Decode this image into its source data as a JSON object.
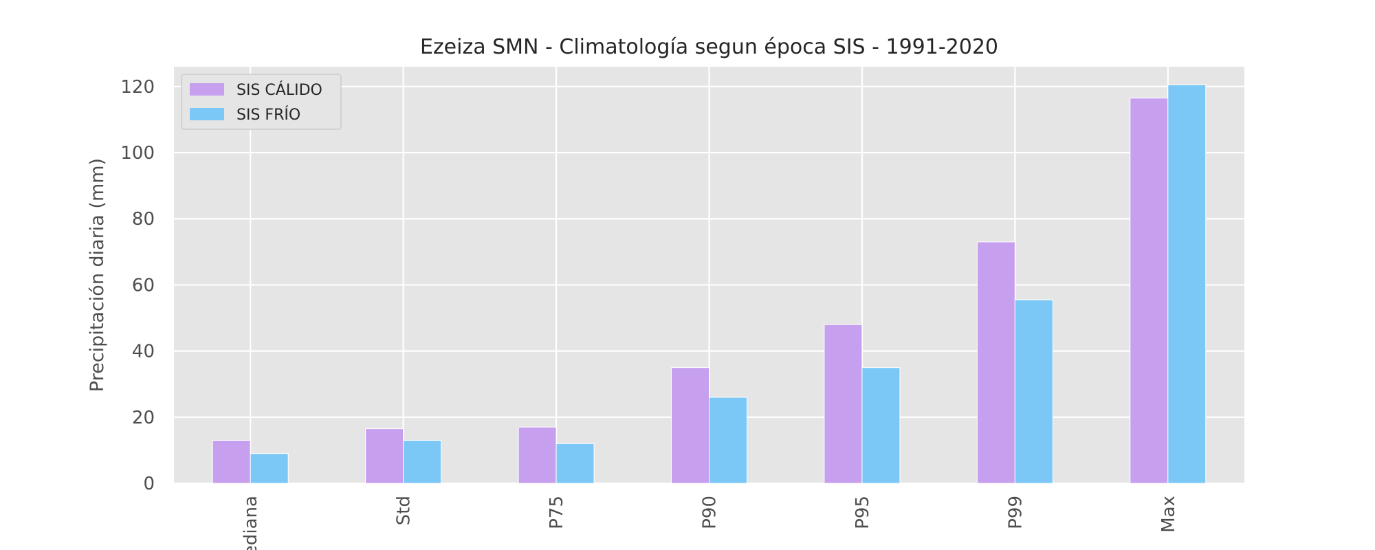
{
  "chart_data": {
    "type": "bar",
    "title": "Ezeiza SMN - Climatología segun época SIS - 1991-2020",
    "xlabel": "",
    "ylabel": "Precipitación diaria (mm)",
    "categories": [
      "Mediana",
      "Std",
      "P75",
      "P90",
      "P95",
      "P99",
      "Max"
    ],
    "series": [
      {
        "name": "SIS CÁLIDO",
        "color": "#c79fef",
        "values": [
          13.0,
          16.5,
          17.0,
          35.0,
          48.0,
          73.0,
          116.5
        ]
      },
      {
        "name": "SIS FRÍO",
        "color": "#7bc8f6",
        "values": [
          9.0,
          13.0,
          12.0,
          26.0,
          35.0,
          55.5,
          120.5
        ]
      }
    ],
    "ylim": [
      0,
      126
    ],
    "yticks": [
      0,
      20,
      40,
      60,
      80,
      100,
      120
    ],
    "grid": true,
    "legend_position": "top-left",
    "background": "#e5e5e5",
    "grid_color": "#ffffff"
  }
}
